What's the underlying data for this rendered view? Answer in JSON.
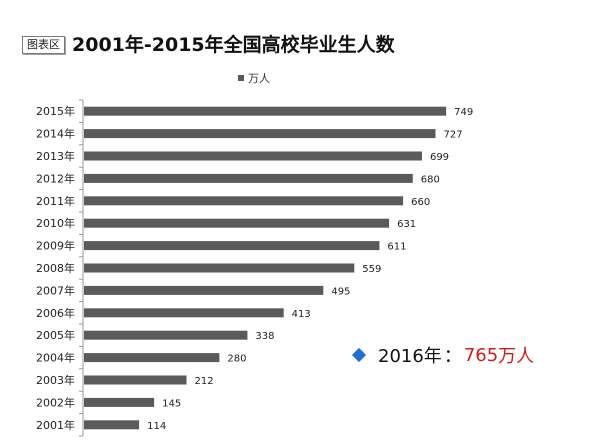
{
  "badge_label": "图表区",
  "title": "2001年-2015年全国高校毕业生人数",
  "legend": {
    "label": "万人",
    "swatch_color": "#5a5a5a"
  },
  "note": {
    "year": "2016年",
    "separator": "：",
    "value": "765",
    "unit": "万人",
    "diamond_color": "#1f6fd1",
    "highlight_color": "#d11c1c"
  },
  "chart_data": {
    "type": "bar",
    "orientation": "horizontal",
    "categories": [
      "2015年",
      "2014年",
      "2013年",
      "2012年",
      "2011年",
      "2010年",
      "2009年",
      "2008年",
      "2007年",
      "2006年",
      "2005年",
      "2004年",
      "2003年",
      "2002年",
      "2001年"
    ],
    "series": [
      {
        "name": "万人",
        "values": [
          749,
          727,
          699,
          680,
          660,
          631,
          611,
          559,
          495,
          413,
          338,
          280,
          212,
          145,
          114
        ]
      }
    ],
    "title": "2001年-2015年全国高校毕业生人数",
    "xlabel": "",
    "ylabel": "",
    "xlim": [
      0,
      800
    ],
    "grid": false,
    "legend_position": "top",
    "bar_color": "#5a5a5a"
  }
}
